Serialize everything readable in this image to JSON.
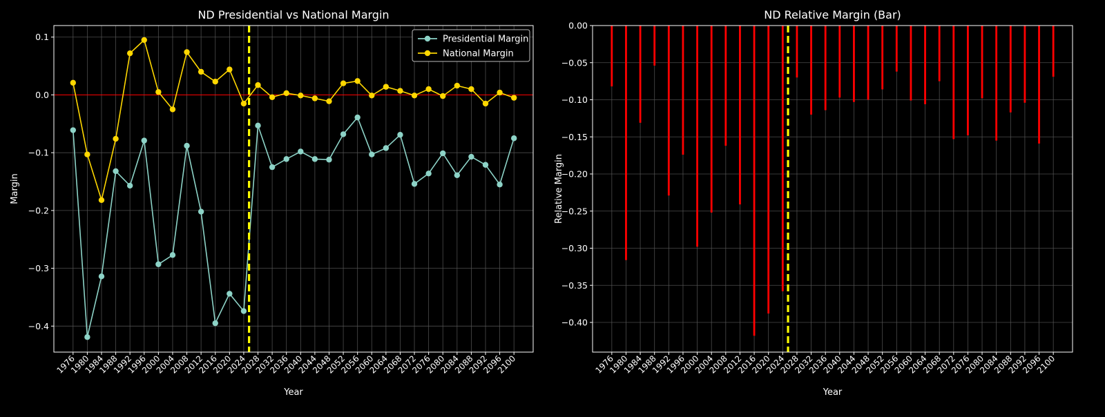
{
  "colors": {
    "background": "#000000",
    "axes_edge": "#ffffff",
    "grid": "#555555",
    "presidential": "#8dd3c7",
    "national": "#ffd700",
    "zero_line": "#ff0000",
    "bars": "#ff0000",
    "marker_line": "#ffff00",
    "legend_bg": "#000000"
  },
  "chart_data": [
    {
      "type": "line",
      "title": "ND Presidential vs National Margin",
      "xlabel": "Year",
      "ylabel": "Margin",
      "x": [
        1976,
        1980,
        1984,
        1988,
        1992,
        1996,
        2000,
        2004,
        2008,
        2012,
        2016,
        2020,
        2024,
        2028,
        2032,
        2036,
        2040,
        2044,
        2048,
        2052,
        2056,
        2060,
        2064,
        2068,
        2072,
        2076,
        2080,
        2084,
        2088,
        2092,
        2096,
        2100
      ],
      "x_ticks": [
        "1976",
        "1980",
        "1984",
        "1988",
        "1992",
        "1996",
        "2000",
        "2004",
        "2008",
        "2012",
        "2016",
        "2020",
        "2024",
        "2028",
        "2032",
        "2036",
        "2040",
        "2044",
        "2048",
        "2052",
        "2056",
        "2060",
        "2064",
        "2068",
        "2072",
        "2076",
        "2080",
        "2084",
        "2088",
        "2092",
        "2096",
        "2100"
      ],
      "xlim": [
        1970.6,
        2105.4
      ],
      "ylim": [
        -0.445,
        0.12
      ],
      "y_ticks": [
        0.1,
        0.0,
        -0.1,
        -0.2,
        -0.3,
        -0.4
      ],
      "y_tick_labels": [
        "0.1",
        "0.0",
        "−0.1",
        "−0.2",
        "−0.3",
        "−0.4"
      ],
      "series": [
        {
          "name": "Presidential Margin",
          "color_key": "presidential",
          "values": [
            -0.061,
            -0.419,
            -0.314,
            -0.132,
            -0.157,
            -0.079,
            -0.293,
            -0.277,
            -0.088,
            -0.202,
            -0.395,
            -0.344,
            -0.374,
            -0.053,
            -0.125,
            -0.111,
            -0.098,
            -0.111,
            -0.112,
            -0.068,
            -0.039,
            -0.103,
            -0.092,
            -0.069,
            -0.154,
            -0.136,
            -0.101,
            -0.139,
            -0.107,
            -0.121,
            -0.155,
            -0.075
          ]
        },
        {
          "name": "National Margin",
          "color_key": "national",
          "values": [
            0.021,
            -0.103,
            -0.182,
            -0.076,
            0.072,
            0.095,
            0.005,
            -0.025,
            0.074,
            0.04,
            0.023,
            0.044,
            -0.015,
            0.017,
            -0.004,
            0.003,
            -0.001,
            -0.006,
            -0.011,
            0.02,
            0.024,
            -0.001,
            0.014,
            0.007,
            -0.001,
            0.01,
            -0.002,
            0.016,
            0.01,
            -0.015,
            0.004,
            -0.005
          ]
        }
      ],
      "hline": 0.0,
      "vline": 2025.5,
      "grid": true,
      "legend": "top-right"
    },
    {
      "type": "bar",
      "title": "ND Relative Margin (Bar)",
      "xlabel": "Year",
      "ylabel": "Relative Margin",
      "categories": [
        "1976",
        "1980",
        "1984",
        "1988",
        "1992",
        "1996",
        "2000",
        "2004",
        "2008",
        "2012",
        "2016",
        "2020",
        "2024",
        "2028",
        "2032",
        "2036",
        "2040",
        "2044",
        "2048",
        "2052",
        "2056",
        "2060",
        "2064",
        "2068",
        "2072",
        "2076",
        "2080",
        "2084",
        "2088",
        "2092",
        "2096",
        "2100"
      ],
      "x": [
        1976,
        1980,
        1984,
        1988,
        1992,
        1996,
        2000,
        2004,
        2008,
        2012,
        2016,
        2020,
        2024,
        2028,
        2032,
        2036,
        2040,
        2044,
        2048,
        2052,
        2056,
        2060,
        2064,
        2068,
        2072,
        2076,
        2080,
        2084,
        2088,
        2092,
        2096,
        2100
      ],
      "values": [
        -0.082,
        -0.316,
        -0.131,
        -0.054,
        -0.229,
        -0.174,
        -0.298,
        -0.252,
        -0.162,
        -0.241,
        -0.418,
        -0.388,
        -0.358,
        -0.07,
        -0.12,
        -0.114,
        -0.097,
        -0.103,
        -0.1,
        -0.086,
        -0.062,
        -0.101,
        -0.106,
        -0.075,
        -0.153,
        -0.148,
        -0.098,
        -0.155,
        -0.117,
        -0.104,
        -0.159,
        -0.069
      ],
      "xlim": [
        1970.6,
        2105.4
      ],
      "ylim": [
        -0.44,
        0.0
      ],
      "y_ticks": [
        0.0,
        -0.05,
        -0.1,
        -0.15,
        -0.2,
        -0.25,
        -0.3,
        -0.35,
        -0.4
      ],
      "y_tick_labels": [
        "0.00",
        "−0.05",
        "−0.10",
        "−0.15",
        "−0.20",
        "−0.25",
        "−0.30",
        "−0.35",
        "−0.40"
      ],
      "vline": 2025.5,
      "grid": true
    }
  ]
}
